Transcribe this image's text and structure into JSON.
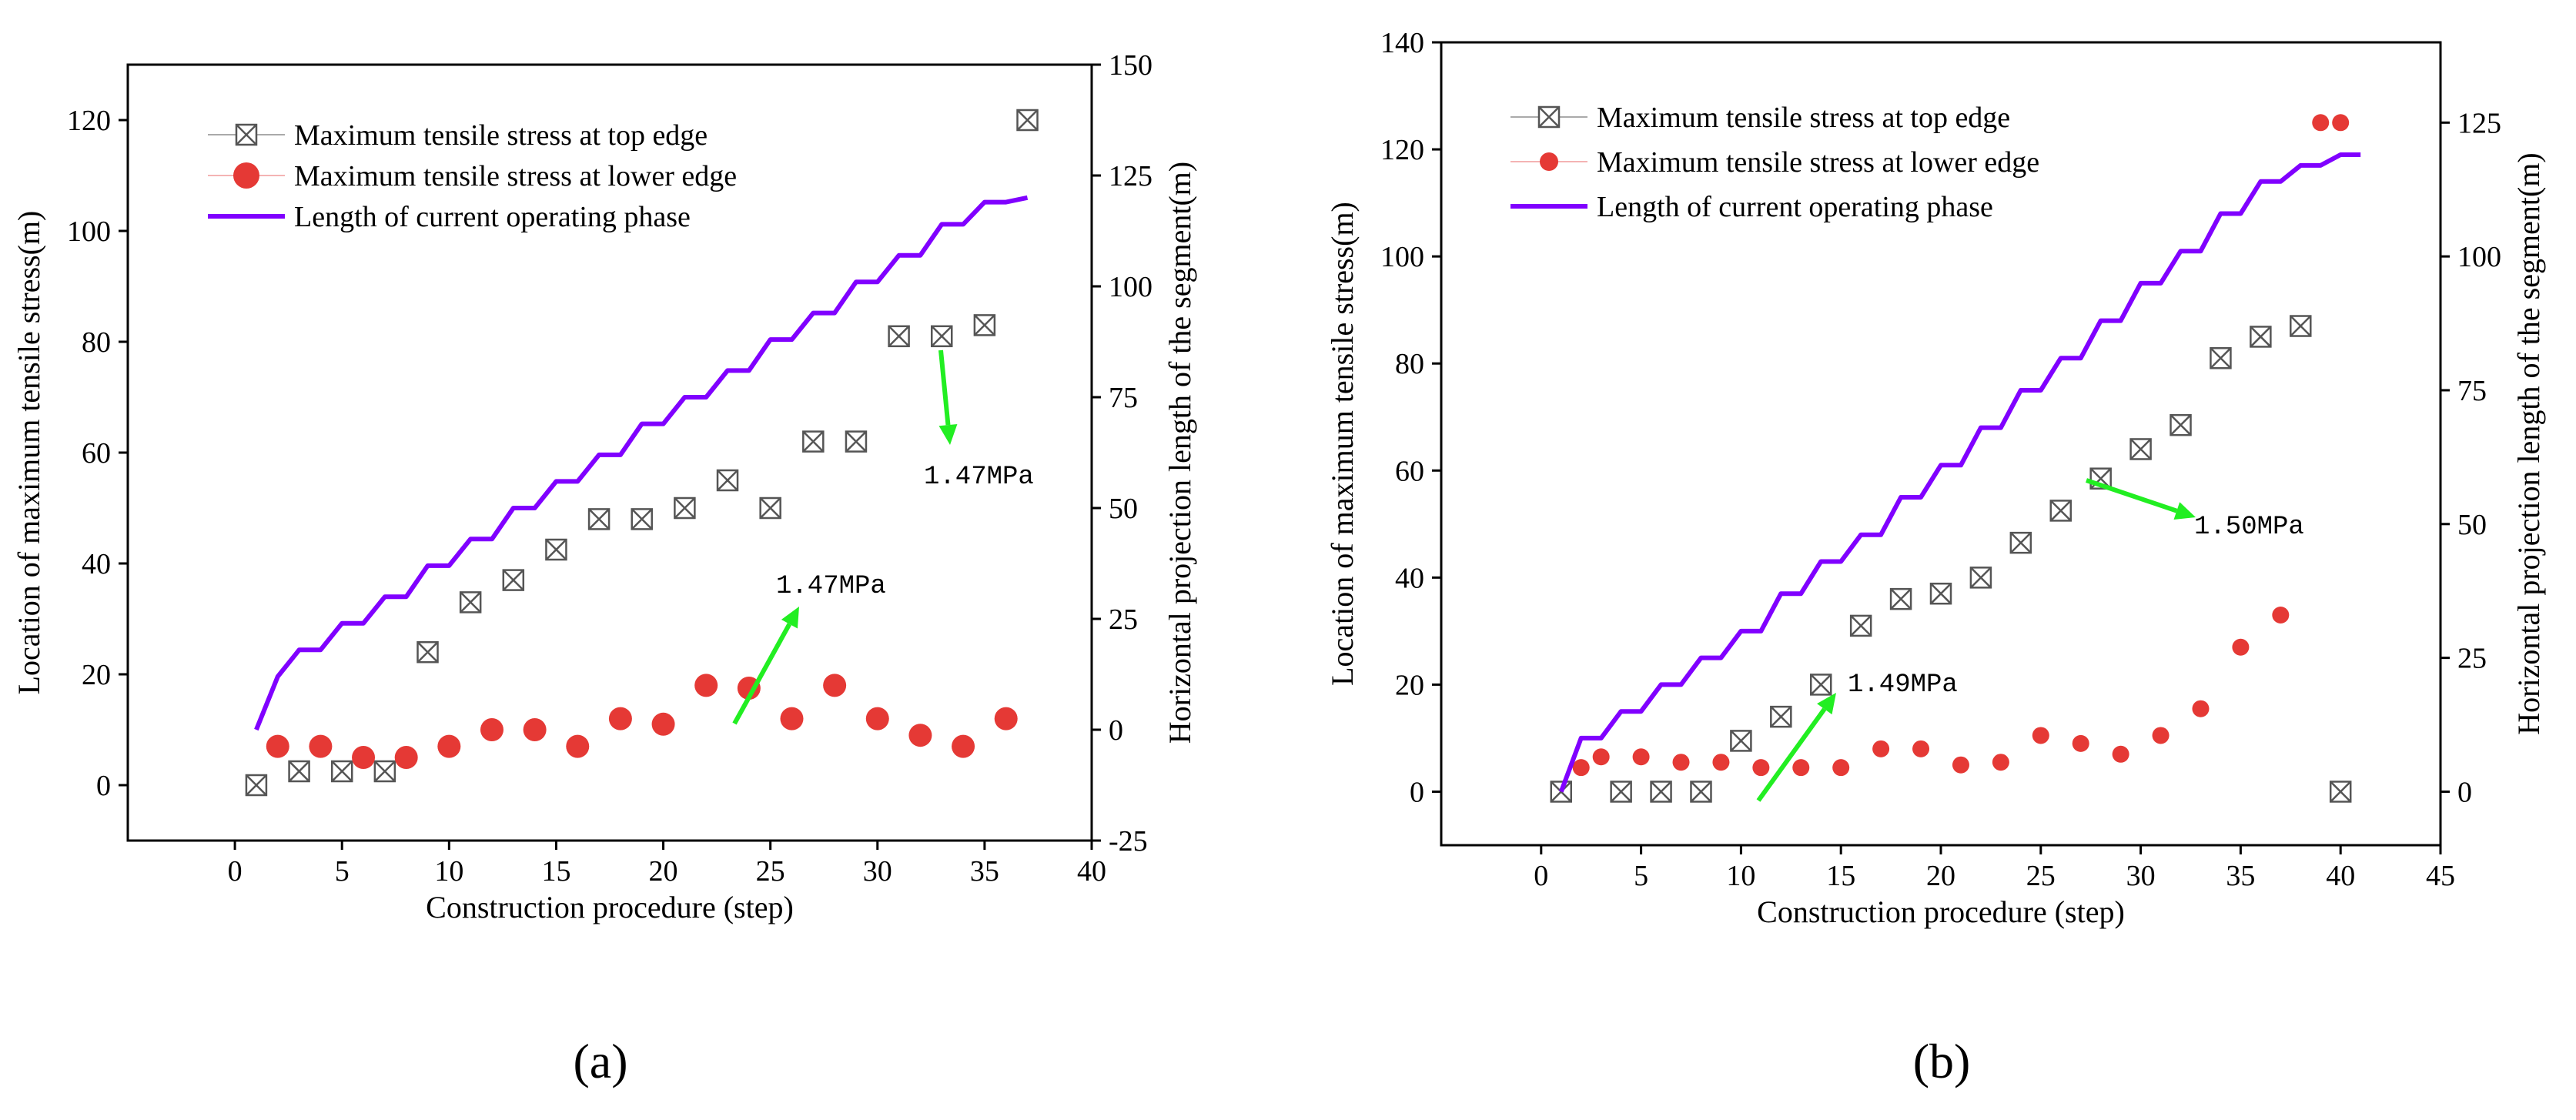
{
  "figure": {
    "panel_labels": [
      "(a)",
      "(b)"
    ]
  },
  "colors": {
    "top_edge_marker": "#555555",
    "lower_edge_marker": "#e53935",
    "length_line": "#8000ff",
    "annotation_arrow": "#22ee22"
  },
  "chart_data": [
    {
      "type": "scatter",
      "panel": "(a)",
      "xlabel": "Construction procedure (step)",
      "ylabel": "Location of maximum tensile stress(m)",
      "ylabel_right": "Horizontal projection length of the segment(m)",
      "xlim": [
        -5,
        40
      ],
      "ylim": [
        -10,
        130
      ],
      "ylim_right": [
        -25,
        150
      ],
      "x_ticks": [
        0,
        5,
        10,
        15,
        20,
        25,
        30,
        35,
        40
      ],
      "y_ticks": [
        0,
        20,
        40,
        60,
        80,
        100,
        120
      ],
      "y_right_ticks": [
        -25,
        0,
        25,
        50,
        75,
        100,
        125,
        150
      ],
      "series": [
        {
          "name": "Maximum tensile stress at top edge",
          "marker": "boxed-x",
          "axis": "left",
          "x": [
            1,
            3,
            5,
            7,
            9,
            11,
            13,
            15,
            17,
            19,
            21,
            23,
            25,
            27,
            29,
            31,
            33,
            35,
            37
          ],
          "y": [
            0,
            2.5,
            2.5,
            2.5,
            24,
            33,
            37,
            42.5,
            48,
            48,
            50,
            55,
            50,
            62,
            62,
            81,
            81,
            83,
            120
          ]
        },
        {
          "name": "Maximum tensile stress at lower edge",
          "marker": "circle",
          "axis": "left",
          "x": [
            2,
            4,
            6,
            8,
            10,
            12,
            14,
            16,
            18,
            20,
            22,
            24,
            26,
            28,
            30,
            32,
            34,
            36
          ],
          "y": [
            7,
            7,
            5,
            5,
            7,
            10,
            10,
            7,
            12,
            11,
            18,
            17.5,
            12,
            18,
            12,
            9,
            7,
            12
          ]
        },
        {
          "name": "Length of current operating phase",
          "marker": "line",
          "axis": "right",
          "x": [
            1,
            2,
            3,
            4,
            5,
            6,
            7,
            8,
            9,
            10,
            11,
            12,
            13,
            14,
            15,
            16,
            17,
            18,
            19,
            20,
            21,
            22,
            23,
            24,
            25,
            26,
            27,
            28,
            29,
            30,
            31,
            32,
            33,
            34,
            35,
            36,
            37
          ],
          "y": [
            0,
            12,
            18,
            18,
            24,
            24,
            30,
            30,
            37,
            37,
            43,
            43,
            50,
            50,
            56,
            56,
            62,
            62,
            69,
            69,
            75,
            75,
            81,
            81,
            88,
            88,
            94,
            94,
            101,
            101,
            107,
            107,
            114,
            114,
            119,
            119,
            120
          ]
        }
      ],
      "annotations": [
        {
          "text": "1.47MPa",
          "x_data": 33.5,
          "y_data": 71
        },
        {
          "text": "1.47MPa",
          "x_data": 26.5,
          "y_data": 39
        }
      ]
    },
    {
      "type": "scatter",
      "panel": "(b)",
      "xlabel": "Construction procedure (step)",
      "ylabel": "Location of maximum tensile stress(m)",
      "ylabel_right": "Horizontal projection length of the segment(m)",
      "xlim": [
        -5,
        45
      ],
      "ylim": [
        -10,
        140
      ],
      "ylim_right": [
        -10,
        140
      ],
      "x_ticks": [
        0,
        5,
        10,
        15,
        20,
        25,
        30,
        35,
        40,
        45
      ],
      "y_ticks": [
        0,
        20,
        40,
        60,
        80,
        100,
        120,
        140
      ],
      "y_right_ticks": [
        0,
        25,
        50,
        75,
        100,
        125
      ],
      "series": [
        {
          "name": "Maximum tensile stress at top edge",
          "marker": "boxed-x",
          "axis": "left",
          "x": [
            1,
            4,
            6,
            8,
            10,
            12,
            14,
            16,
            18,
            20,
            22,
            24,
            26,
            28,
            30,
            32,
            34,
            36,
            38,
            40
          ],
          "y": [
            0,
            0,
            0,
            0,
            9.5,
            14,
            20,
            31,
            36,
            37,
            40,
            46.5,
            52.5,
            58.5,
            64,
            68.5,
            81,
            85,
            87,
            0
          ]
        },
        {
          "name": "Maximum tensile stress at lower edge",
          "marker": "circle",
          "axis": "left",
          "x": [
            2,
            3,
            5,
            7,
            9,
            11,
            13,
            15,
            17,
            19,
            21,
            23,
            25,
            27,
            29,
            31,
            33,
            35,
            37,
            39,
            40
          ],
          "y": [
            4.5,
            6.5,
            6.5,
            5.5,
            5.5,
            4.5,
            4.5,
            4.5,
            8,
            8,
            5,
            5.5,
            10.5,
            9,
            7,
            10.5,
            15.5,
            27,
            33,
            125,
            125
          ]
        },
        {
          "name": "Length of current operating phase",
          "marker": "line",
          "axis": "right",
          "x": [
            1,
            2,
            3,
            4,
            5,
            6,
            7,
            8,
            9,
            10,
            11,
            12,
            13,
            14,
            15,
            16,
            17,
            18,
            19,
            20,
            21,
            22,
            23,
            24,
            25,
            26,
            27,
            28,
            29,
            30,
            31,
            32,
            33,
            34,
            35,
            36,
            37,
            38,
            39,
            40,
            41
          ],
          "y": [
            0,
            10,
            10,
            15,
            15,
            20,
            20,
            25,
            25,
            30,
            30,
            37,
            37,
            43,
            43,
            48,
            48,
            55,
            55,
            61,
            61,
            68,
            68,
            75,
            75,
            81,
            81,
            88,
            88,
            95,
            95,
            101,
            101,
            108,
            108,
            114,
            114,
            117,
            117,
            119,
            119
          ]
        }
      ],
      "annotations": [
        {
          "text": "1.50MPa",
          "x_data": 34.5,
          "y_data": 62
        },
        {
          "text": "1.49MPa",
          "x_data": 17,
          "y_data": 19
        }
      ]
    }
  ]
}
